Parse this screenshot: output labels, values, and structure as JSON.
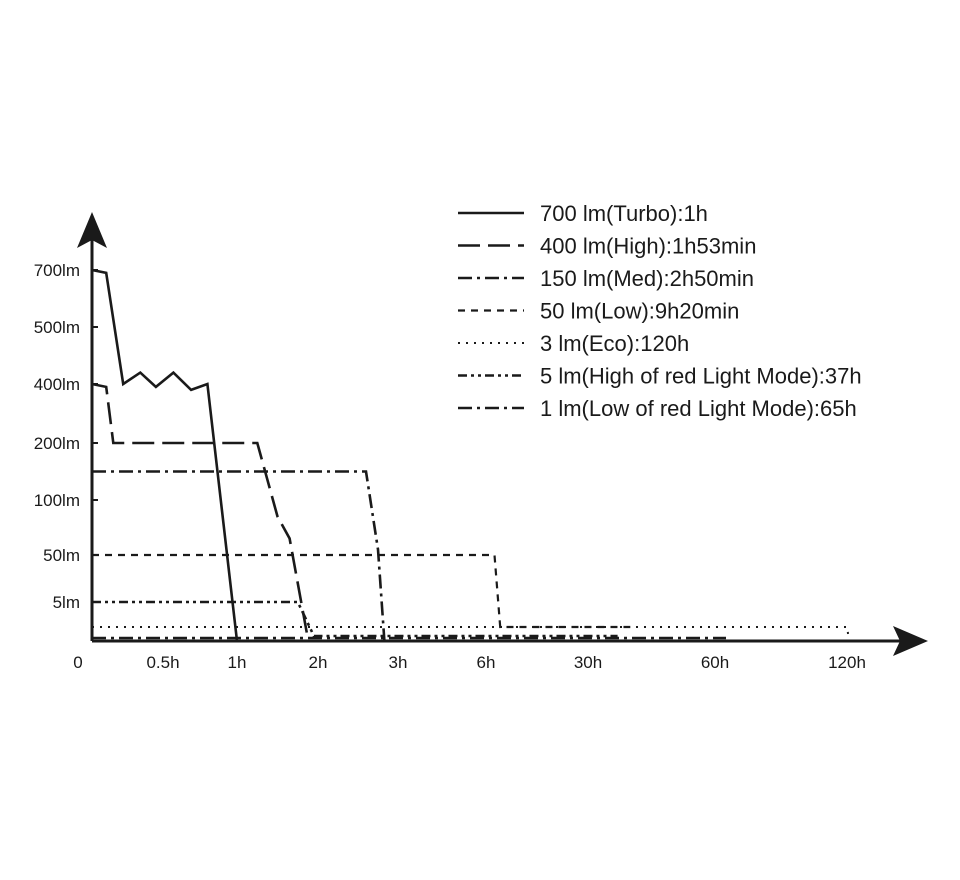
{
  "chart_data": {
    "type": "line",
    "title": "",
    "xlabel": "",
    "ylabel": "",
    "x_ticks": [
      "0",
      "0.5h",
      "1h",
      "2h",
      "3h",
      "6h",
      "30h",
      "60h",
      "120h"
    ],
    "y_ticks": [
      "5lm",
      "50lm",
      "100lm",
      "200lm",
      "400lm",
      "500lm",
      "700lm"
    ],
    "x_scale": "nonlinear, labeled ticks only",
    "y_scale": "nonlinear, labeled ticks only",
    "grid": false,
    "legend_position": "top-right",
    "series": [
      {
        "name": "700 lm(Turbo):1h",
        "dash": "solid",
        "points": [
          [
            0,
            700
          ],
          [
            0.1,
            690
          ],
          [
            0.22,
            400
          ],
          [
            0.34,
            420
          ],
          [
            0.45,
            390
          ],
          [
            0.57,
            420
          ],
          [
            0.69,
            380
          ],
          [
            0.8,
            400
          ],
          [
            1,
            0
          ]
        ]
      },
      {
        "name": "400 lm(High):1h53min",
        "dash": "long-dash",
        "points": [
          [
            0,
            400
          ],
          [
            0.1,
            390
          ],
          [
            0.15,
            200
          ],
          [
            1.25,
            200
          ],
          [
            1.5,
            85
          ],
          [
            1.65,
            65
          ],
          [
            1.88,
            0
          ]
        ]
      },
      {
        "name": "150 lm(Med):2h50min",
        "dash": "dash-dot",
        "points": [
          [
            0,
            150
          ],
          [
            2.6,
            150
          ],
          [
            2.75,
            55
          ],
          [
            2.83,
            0
          ]
        ]
      },
      {
        "name": "50 lm(Low):9h20min",
        "dash": "short-dash",
        "points": [
          [
            0,
            50
          ],
          [
            8,
            50
          ],
          [
            9.33,
            3
          ],
          [
            40,
            3
          ]
        ]
      },
      {
        "name": "3 lm(Eco):120h",
        "dash": "dotted",
        "points": [
          [
            0,
            3
          ],
          [
            120,
            3
          ],
          [
            121,
            0
          ]
        ]
      },
      {
        "name": "5 lm(High of red Light Mode):37h",
        "dash": "dash-dot-dot",
        "points": [
          [
            0,
            5
          ],
          [
            1.75,
            5
          ],
          [
            1.95,
            0.5
          ],
          [
            37,
            0.5
          ]
        ]
      },
      {
        "name": "1 lm(Low of red Light Mode):65h",
        "dash": "dash-dot",
        "points": [
          [
            0,
            1
          ],
          [
            65,
            1
          ]
        ]
      }
    ]
  }
}
